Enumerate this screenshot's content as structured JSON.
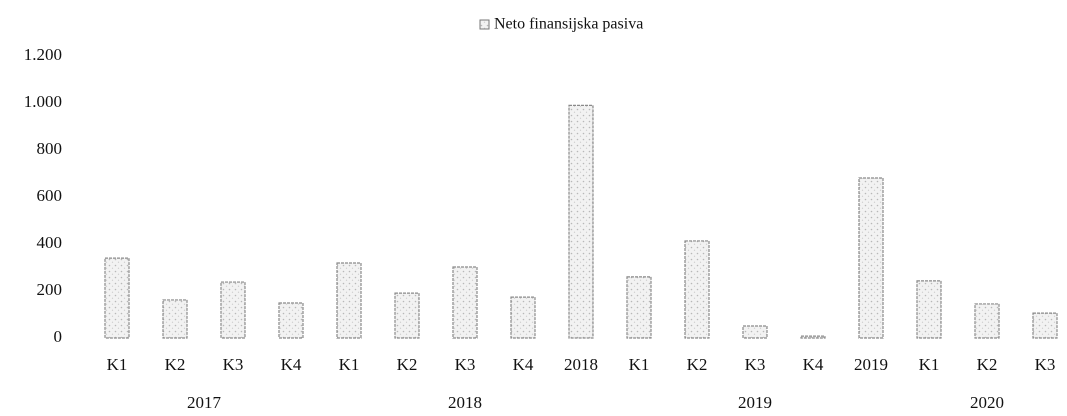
{
  "chart_data": {
    "type": "bar",
    "legend": "Neto finansijska pasiva",
    "color": "#e6e6e6",
    "groups": [
      {
        "label": "2017",
        "categories": [
          "K1",
          "K2",
          "K3",
          "K4"
        ]
      },
      {
        "label": "2018",
        "categories": [
          "K1",
          "K2",
          "K3",
          "K4",
          "2018"
        ]
      },
      {
        "label": "2019",
        "categories": [
          "K1",
          "K2",
          "K3",
          "K4",
          "2019"
        ]
      },
      {
        "label": "2020",
        "categories": [
          "K1",
          "K2",
          "K3"
        ]
      }
    ],
    "values": [
      340,
      162,
      238,
      149,
      319,
      191,
      302,
      174,
      990,
      260,
      413,
      51,
      8,
      681,
      243,
      145,
      106
    ],
    "ylim": [
      0,
      1200
    ],
    "yticks": [
      0,
      200,
      400,
      600,
      800,
      {
        "value": 1000,
        "label": "1.000"
      },
      {
        "value": 1200,
        "label": "1.200"
      }
    ],
    "grid": false
  }
}
